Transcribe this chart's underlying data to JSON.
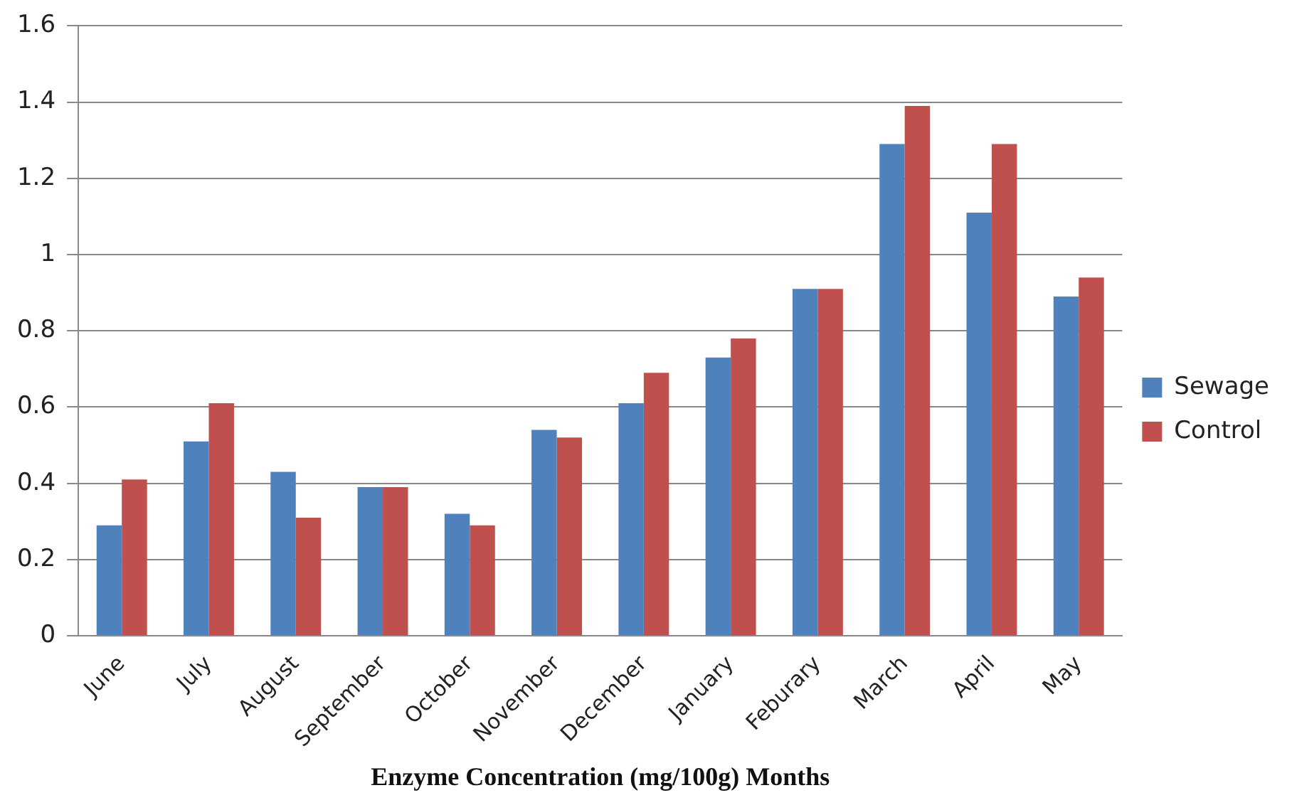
{
  "chart_data": {
    "type": "bar",
    "xlabel": "Enzyme Concentration (mg/100g) Months",
    "categories": [
      "June",
      "July",
      "August",
      "September",
      "October",
      "November",
      "December",
      "January",
      "Feburary",
      "March",
      "April",
      "May"
    ],
    "series": [
      {
        "name": "Sewage",
        "color": "#4f81bd",
        "values": [
          0.29,
          0.51,
          0.43,
          0.39,
          0.32,
          0.54,
          0.61,
          0.73,
          0.91,
          1.29,
          1.11,
          0.89
        ]
      },
      {
        "name": "Control",
        "color": "#c0504d",
        "values": [
          0.41,
          0.61,
          0.31,
          0.39,
          0.29,
          0.52,
          0.69,
          0.78,
          0.91,
          1.39,
          1.29,
          0.94
        ]
      }
    ],
    "ylim": [
      0,
      1.6
    ],
    "yticks": [
      0,
      0.2,
      0.4,
      0.6,
      0.8,
      1,
      1.2,
      1.4,
      1.6
    ],
    "grid": "y",
    "legend": "right"
  }
}
